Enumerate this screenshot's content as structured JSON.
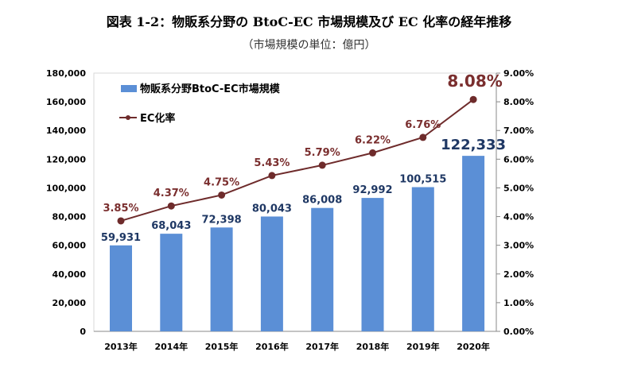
{
  "title": "図表 1-2：物販系分野の BtoC-EC 市場規模及び EC 化率の経年推移",
  "subtitle": "（市場規模の単位：億円）",
  "chart_data": {
    "type": "bar+line",
    "title": "図表 1-2：物販系分野の BtoC-EC 市場規模及び EC 化率の経年推移",
    "subtitle": "（市場規模の単位：億円）",
    "categories": [
      "2013年",
      "2014年",
      "2015年",
      "2016年",
      "2017年",
      "2018年",
      "2019年",
      "2020年"
    ],
    "series": [
      {
        "name": "物販系分野BtoC-EC市場規模",
        "type": "bar",
        "axis": "left",
        "color": "#5b8fd6",
        "values": [
          59931,
          68043,
          72398,
          80043,
          86008,
          92992,
          100515,
          122333
        ],
        "labels": [
          "59,931",
          "68,043",
          "72,398",
          "80,043",
          "86,008",
          "92,992",
          "100,515",
          "122,333"
        ]
      },
      {
        "name": "EC化率",
        "type": "line",
        "axis": "right",
        "color": "#6e2b2b",
        "values": [
          3.85,
          4.37,
          4.75,
          5.43,
          5.79,
          6.22,
          6.76,
          8.08
        ],
        "labels": [
          "3.85%",
          "4.37%",
          "4.75%",
          "5.43%",
          "5.79%",
          "6.22%",
          "6.76%",
          "8.08%"
        ]
      }
    ],
    "y_left": {
      "lim": [
        0,
        180000
      ],
      "ticks": [
        "0",
        "20,000",
        "40,000",
        "60,000",
        "80,000",
        "100,000",
        "120,000",
        "140,000",
        "160,000",
        "180,000"
      ]
    },
    "y_right": {
      "lim": [
        0,
        9
      ],
      "ticks": [
        "0.00%",
        "1.00%",
        "2.00%",
        "3.00%",
        "4.00%",
        "5.00%",
        "6.00%",
        "7.00%",
        "8.00%",
        "9.00%"
      ]
    },
    "legend": "top-left",
    "grid": false,
    "bar_label_color": "#1f3864"
  }
}
